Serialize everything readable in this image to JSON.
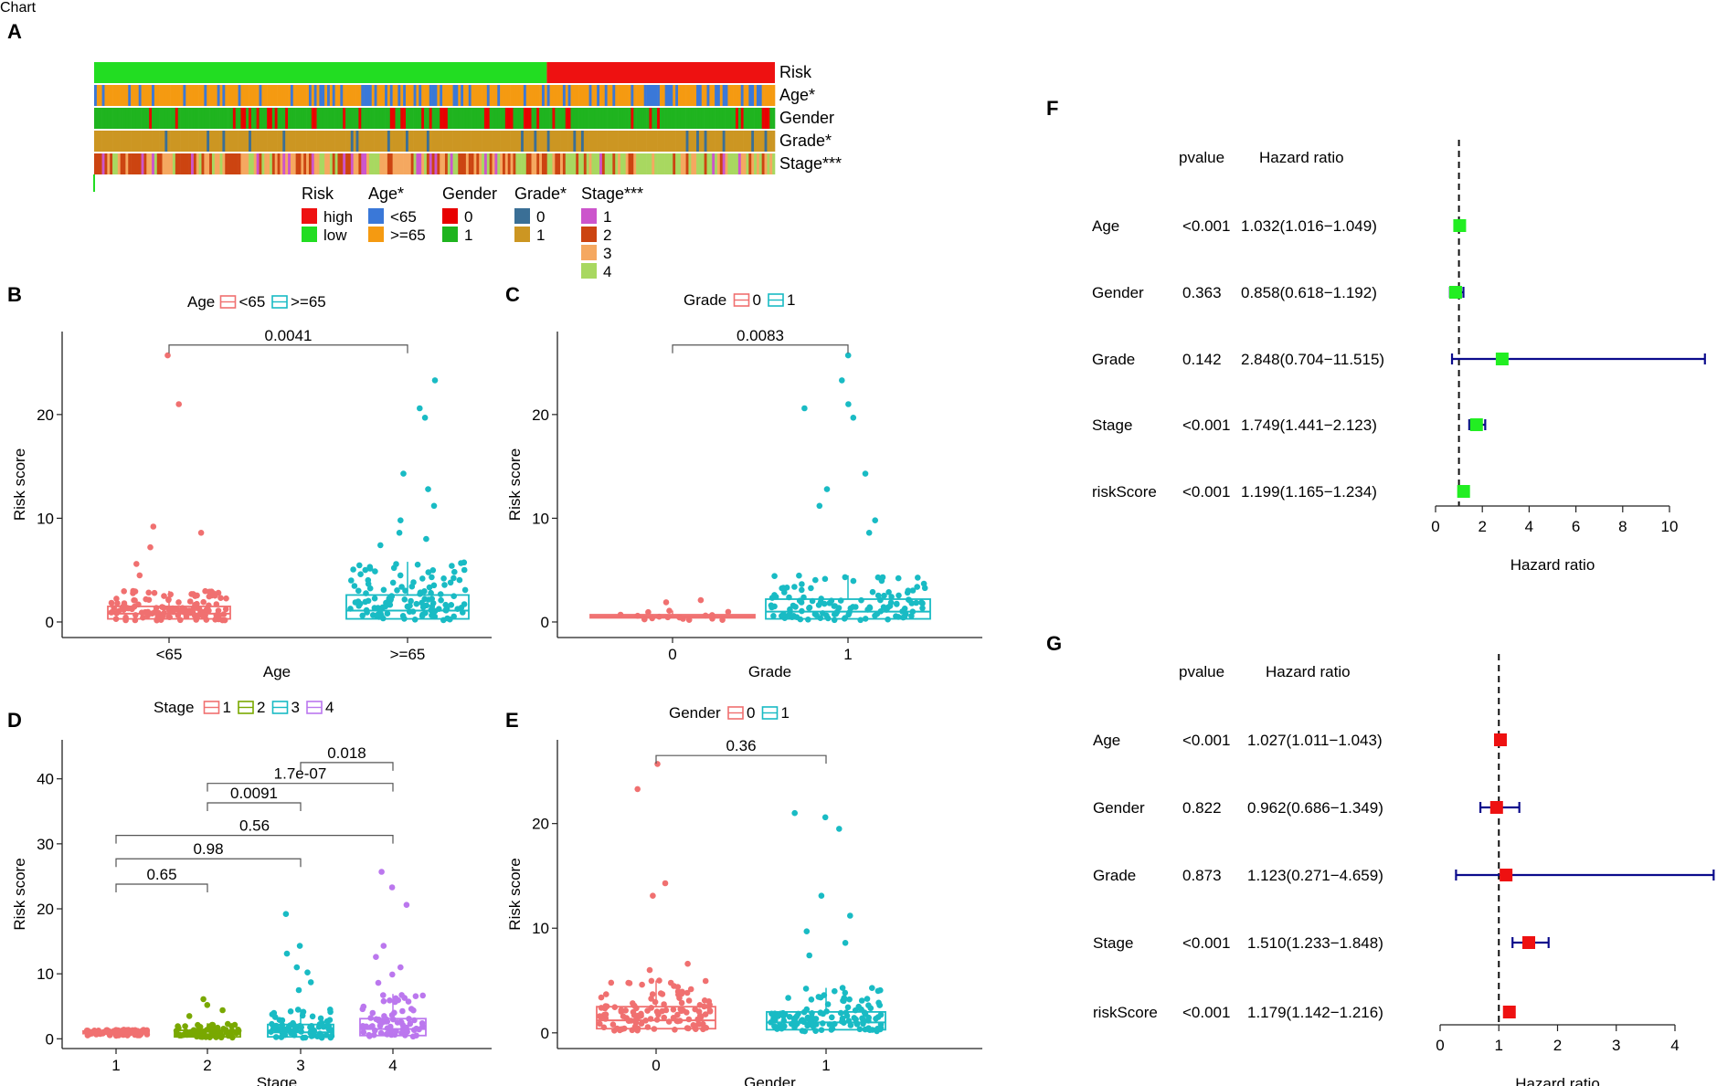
{
  "colors": {
    "risk_high": "#ee1111",
    "risk_low": "#22dd22",
    "age_young": "#3a78d8",
    "age_old": "#f59a11",
    "gender_0": "#e80000",
    "gender_1": "#1fb41f",
    "grade_0": "#3a6f96",
    "grade_1": "#cc9622",
    "stage_1": "#cc55cc",
    "stage_2": "#cc4411",
    "stage_3": "#f5a860",
    "stage_4": "#a8d860",
    "g0": "#f07070",
    "g1": "#19bbc4",
    "g2": "#79a800",
    "g3": "#19bbc4",
    "g4": "#bb77ee",
    "forest_F": "#22ee22",
    "forest_G": "#ee1111",
    "ci_line": "#0b0b8c"
  },
  "panels": {
    "A": {
      "letter": "A",
      "rows": [
        "Risk",
        "Age*",
        "Gender",
        "Grade*",
        "Stage***"
      ],
      "legend": [
        {
          "title": "Risk",
          "items": [
            {
              "label": "high",
              "color": "#ee1111"
            },
            {
              "label": "low",
              "color": "#22dd22"
            }
          ]
        },
        {
          "title": "Age*",
          "items": [
            {
              "label": "<65",
              "color": "#3a78d8"
            },
            {
              "label": ">=65",
              "color": "#f59a11"
            }
          ]
        },
        {
          "title": "Gender",
          "items": [
            {
              "label": "0",
              "color": "#e80000"
            },
            {
              "label": "1",
              "color": "#1fb41f"
            }
          ]
        },
        {
          "title": "Grade*",
          "items": [
            {
              "label": "0",
              "color": "#3a6f96"
            },
            {
              "label": "1",
              "color": "#cc9622"
            }
          ]
        },
        {
          "title": "Stage***",
          "items": [
            {
              "label": "1",
              "color": "#cc55cc"
            },
            {
              "label": "2",
              "color": "#cc4411"
            },
            {
              "label": "3",
              "color": "#f5a860"
            },
            {
              "label": "4",
              "color": "#a8d860"
            }
          ]
        }
      ]
    },
    "B": {
      "letter": "B"
    },
    "C": {
      "letter": "C"
    },
    "D": {
      "letter": "D"
    },
    "E": {
      "letter": "E"
    },
    "F": {
      "letter": "F"
    },
    "G": {
      "letter": "G"
    }
  },
  "chart_data": [
    {
      "id": "B",
      "type": "boxplot",
      "title": "Age",
      "legend_title": "Age",
      "legend": [
        "<65",
        ">=65"
      ],
      "categories": [
        "<65",
        ">=65"
      ],
      "xlabel": "Age",
      "ylabel": "Risk score",
      "ylim": [
        -1.5,
        28
      ],
      "yticks": [
        0,
        10,
        20
      ],
      "boxes": [
        {
          "q1": 0.3,
          "median": 0.8,
          "q3": 1.5,
          "whisker_high": 3.0
        },
        {
          "q1": 0.3,
          "median": 1.1,
          "q3": 2.6,
          "whisker_high": 5.8
        }
      ],
      "outliers": [
        [
          25.7,
          21.0,
          9.2,
          8.6,
          7.2,
          5.6,
          4.5
        ],
        [
          23.3,
          20.6,
          19.7,
          14.3,
          12.8,
          11.2,
          9.8,
          8.6,
          8.0,
          7.4
        ]
      ],
      "comparisons": [
        {
          "pair": [
            "<65",
            ">=65"
          ],
          "p": "0.0041"
        }
      ]
    },
    {
      "id": "C",
      "type": "boxplot",
      "title": "Grade",
      "legend_title": "Grade",
      "legend": [
        "0",
        "1"
      ],
      "categories": [
        "0",
        "1"
      ],
      "xlabel": "Grade",
      "ylabel": "Risk score",
      "ylim": [
        -1.5,
        28
      ],
      "yticks": [
        0,
        10,
        20
      ],
      "boxes": [
        {
          "q1": 0.4,
          "median": 0.55,
          "q3": 0.7,
          "whisker_high": 1.1
        },
        {
          "q1": 0.3,
          "median": 1.0,
          "q3": 2.2,
          "whisker_high": 4.5
        }
      ],
      "outliers": [
        [
          2.1,
          1.9
        ],
        [
          25.7,
          23.3,
          21.0,
          20.6,
          19.7,
          14.3,
          12.8,
          11.2,
          9.8,
          8.6
        ]
      ],
      "comparisons": [
        {
          "pair": [
            "0",
            "1"
          ],
          "p": "0.0083"
        }
      ]
    },
    {
      "id": "D",
      "type": "boxplot",
      "title": "Stage",
      "legend_title": "Stage",
      "legend": [
        "1",
        "2",
        "3",
        "4"
      ],
      "categories": [
        "1",
        "2",
        "3",
        "4"
      ],
      "xlabel": "Stage",
      "ylabel": "Risk score",
      "ylim": [
        -1.5,
        46
      ],
      "yticks": [
        0,
        10,
        20,
        30,
        40
      ],
      "boxes": [
        {
          "q1": 0.8,
          "median": 1.0,
          "q3": 1.2,
          "whisker_high": 1.4
        },
        {
          "q1": 0.3,
          "median": 0.7,
          "q3": 1.3,
          "whisker_high": 2.4
        },
        {
          "q1": 0.3,
          "median": 1.0,
          "q3": 2.2,
          "whisker_high": 4.6
        },
        {
          "q1": 0.5,
          "median": 1.5,
          "q3": 3.1,
          "whisker_high": 6.9
        }
      ],
      "outliers": [
        [
          1.3
        ],
        [
          6.1,
          5.2,
          4.4,
          3.5
        ],
        [
          19.2,
          14.3,
          13.1,
          11.0,
          10.2,
          8.7,
          7.5
        ],
        [
          25.7,
          23.3,
          20.6,
          14.3,
          12.6,
          11.0,
          9.9,
          8.6
        ]
      ],
      "comparisons": [
        {
          "pair": [
            "3",
            "4"
          ],
          "p": "0.018",
          "y": 42.5
        },
        {
          "pair": [
            "2",
            "4"
          ],
          "p": "1.7e-07",
          "y": 39.3
        },
        {
          "pair": [
            "2",
            "3"
          ],
          "p": "0.0091",
          "y": 36.3
        },
        {
          "pair": [
            "1",
            "4"
          ],
          "p": "0.56",
          "y": 31.3
        },
        {
          "pair": [
            "1",
            "3"
          ],
          "p": "0.98",
          "y": 27.7
        },
        {
          "pair": [
            "1",
            "2"
          ],
          "p": "0.65",
          "y": 23.8
        }
      ]
    },
    {
      "id": "E",
      "type": "boxplot",
      "title": "Gender",
      "legend_title": "Gender",
      "legend": [
        "0",
        "1"
      ],
      "categories": [
        "0",
        "1"
      ],
      "xlabel": "Gender",
      "ylabel": "Risk score",
      "ylim": [
        -1.5,
        28
      ],
      "yticks": [
        0,
        10,
        20
      ],
      "boxes": [
        {
          "q1": 0.4,
          "median": 1.2,
          "q3": 2.5,
          "whisker_high": 5.0
        },
        {
          "q1": 0.3,
          "median": 1.0,
          "q3": 2.0,
          "whisker_high": 4.3
        }
      ],
      "outliers": [
        [
          25.7,
          23.3,
          14.3,
          13.1,
          6.6,
          6.0
        ],
        [
          21.0,
          20.6,
          19.5,
          13.1,
          11.2,
          9.7,
          8.6,
          7.4
        ]
      ],
      "comparisons": [
        {
          "pair": [
            "0",
            "1"
          ],
          "p": "0.36"
        }
      ]
    },
    {
      "id": "F",
      "type": "forest",
      "xlabel": "Hazard ratio",
      "col_pvalue": "pvalue",
      "col_hr": "Hazard ratio",
      "xlim": [
        0,
        10
      ],
      "xticks": [
        0,
        2,
        4,
        6,
        8,
        10
      ],
      "ref": 1,
      "rows": [
        {
          "label": "Age",
          "p": "<0.001",
          "hr_text": "1.032(1.016−1.049)",
          "hr": 1.032,
          "lo": 1.016,
          "hi": 1.049
        },
        {
          "label": "Gender",
          "p": "0.363",
          "hr_text": "0.858(0.618−1.192)",
          "hr": 0.858,
          "lo": 0.618,
          "hi": 1.192
        },
        {
          "label": "Grade",
          "p": "0.142",
          "hr_text": "2.848(0.704−11.515)",
          "hr": 2.848,
          "lo": 0.704,
          "hi": 11.515
        },
        {
          "label": "Stage",
          "p": "<0.001",
          "hr_text": "1.749(1.441−2.123)",
          "hr": 1.749,
          "lo": 1.441,
          "hi": 2.123
        },
        {
          "label": "riskScore",
          "p": "<0.001",
          "hr_text": "1.199(1.165−1.234)",
          "hr": 1.199,
          "lo": 1.165,
          "hi": 1.234
        }
      ]
    },
    {
      "id": "G",
      "type": "forest",
      "xlabel": "Hazard ratio",
      "col_pvalue": "pvalue",
      "col_hr": "Hazard ratio",
      "xlim": [
        0,
        4
      ],
      "xticks": [
        0,
        1,
        2,
        3,
        4
      ],
      "ref": 1,
      "rows": [
        {
          "label": "Age",
          "p": "<0.001",
          "hr_text": "1.027(1.011−1.043)",
          "hr": 1.027,
          "lo": 1.011,
          "hi": 1.043
        },
        {
          "label": "Gender",
          "p": "0.822",
          "hr_text": "0.962(0.686−1.349)",
          "hr": 0.962,
          "lo": 0.686,
          "hi": 1.349
        },
        {
          "label": "Grade",
          "p": "0.873",
          "hr_text": "1.123(0.271−4.659)",
          "hr": 1.123,
          "lo": 0.271,
          "hi": 4.659
        },
        {
          "label": "Stage",
          "p": "<0.001",
          "hr_text": "1.510(1.233−1.848)",
          "hr": 1.51,
          "lo": 1.233,
          "hi": 1.848
        },
        {
          "label": "riskScore",
          "p": "<0.001",
          "hr_text": "1.179(1.142−1.216)",
          "hr": 1.179,
          "lo": 1.142,
          "hi": 1.216
        }
      ]
    }
  ]
}
